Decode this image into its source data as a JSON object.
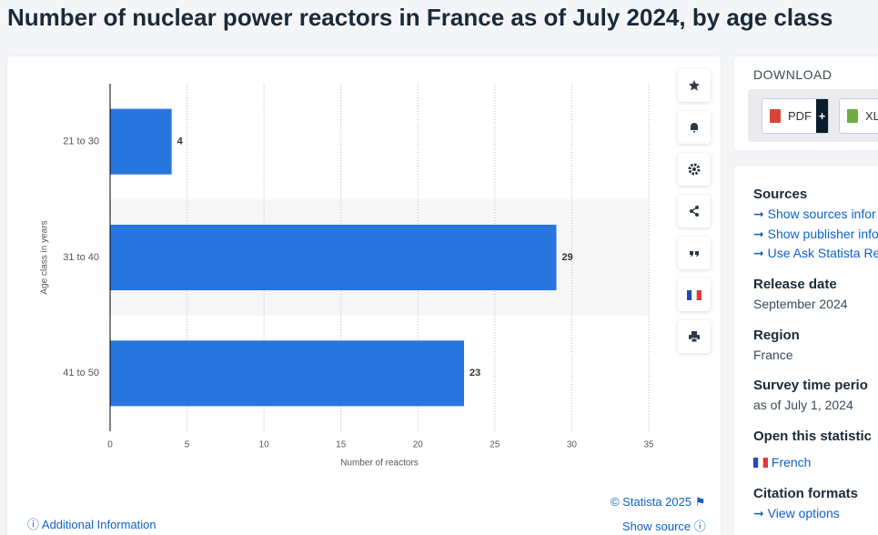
{
  "header": {
    "title": "Number of nuclear power reactors in France as of July 2024, by age class"
  },
  "chart_data": {
    "type": "bar",
    "orientation": "horizontal",
    "categories": [
      "21 to 30",
      "31 to 40",
      "41 to 50"
    ],
    "values": [
      4,
      29,
      23
    ],
    "color": "#2876dd",
    "xlim": [
      0,
      35
    ],
    "xticks": [
      0,
      5,
      10,
      15,
      20,
      25,
      30,
      35
    ],
    "grid": true,
    "x_label": "Number of reactors",
    "y_label": "Age class in years"
  },
  "footer": {
    "additional_info": "Additional Information",
    "copyright": "© Statista 2025",
    "show_source": "Show source"
  },
  "download": {
    "title": "DOWNLOAD",
    "buttons": [
      "PDF",
      "XL"
    ]
  },
  "sidebar": {
    "sources_title": "Sources",
    "source_links": [
      "Show sources infor",
      "Show publisher info",
      "Use Ask Statista Re"
    ],
    "release_date_title": "Release date",
    "release_date": "September 2024",
    "region_title": "Region",
    "region": "France",
    "survey_title": "Survey time perio",
    "survey": "as of July 1, 2024",
    "open_title": "Open this statistic",
    "open_link": "French",
    "citation_title": "Citation formats",
    "citation_link": "View options"
  }
}
